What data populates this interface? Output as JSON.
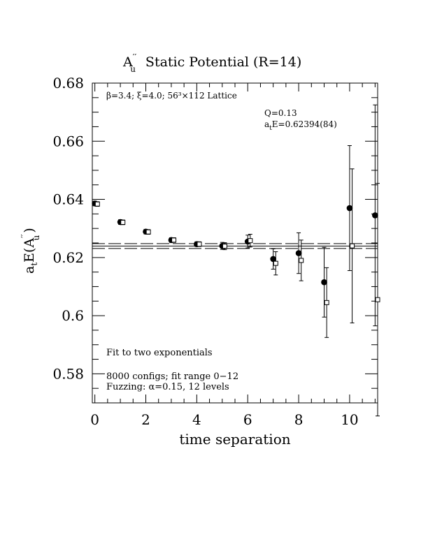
{
  "chart_data": {
    "type": "scatter",
    "title_main": "A",
    "title_super": "′′",
    "title_sub": "u",
    "title_rest": "Static Potential (R=14)",
    "xlabel": "time separation",
    "ylabel_main": "a",
    "ylabel_sub": "t",
    "ylabel_rest_open": "E(A",
    "ylabel_super": "′′",
    "ylabel_sub2": "u",
    "ylabel_close": ")",
    "xlim": [
      -0.1,
      11.1
    ],
    "ylim": [
      0.57,
      0.68
    ],
    "xticks": [
      0,
      2,
      4,
      6,
      8,
      10
    ],
    "xtick_labels": [
      "0",
      "2",
      "4",
      "6",
      "8",
      "10"
    ],
    "yticks": [
      0.58,
      0.6,
      0.62,
      0.64,
      0.66,
      0.68
    ],
    "ytick_labels": [
      "0.58",
      "0.6",
      "0.62",
      "0.64",
      "0.66",
      "0.68"
    ],
    "annotations": {
      "lattice": "β=3.4; ξ=4.0; 56³×112 Lattice",
      "q": "Q=0.13",
      "energy_prefix": "a",
      "energy_sub": "t",
      "energy_rest": "E=0.62394(84)",
      "fit": "Fit to two exponentials",
      "configs": "8000 configs; fit range 0−12",
      "fuzzing": "Fuzzing: α=0.15, 12 levels"
    },
    "fit": {
      "value": 0.62394,
      "error": 0.00084,
      "x_range": [
        0,
        12
      ]
    },
    "series": [
      {
        "marker": "filled-circle",
        "points": [
          {
            "x": 0,
            "y": 0.6386,
            "err": 0.0008
          },
          {
            "x": 1,
            "y": 0.6322,
            "err": 0.0008
          },
          {
            "x": 2,
            "y": 0.6289,
            "err": 0.0008
          },
          {
            "x": 3,
            "y": 0.626,
            "err": 0.0008
          },
          {
            "x": 4,
            "y": 0.6246,
            "err": 0.0008
          },
          {
            "x": 5,
            "y": 0.624,
            "err": 0.0012
          },
          {
            "x": 6,
            "y": 0.6255,
            "err": 0.0022
          },
          {
            "x": 7,
            "y": 0.6195,
            "err": 0.0035
          },
          {
            "x": 8,
            "y": 0.6215,
            "err": 0.007
          },
          {
            "x": 9,
            "y": 0.6115,
            "err": 0.012
          },
          {
            "x": 10,
            "y": 0.637,
            "err": 0.0215
          },
          {
            "x": 11,
            "y": 0.6345,
            "err": 0.038
          }
        ]
      },
      {
        "marker": "open-square",
        "points": [
          {
            "x": 0.1,
            "y": 0.6384,
            "err": 0.0008
          },
          {
            "x": 1.1,
            "y": 0.6321,
            "err": 0.0008
          },
          {
            "x": 2.1,
            "y": 0.6288,
            "err": 0.0008
          },
          {
            "x": 3.1,
            "y": 0.626,
            "err": 0.0008
          },
          {
            "x": 4.1,
            "y": 0.6246,
            "err": 0.0008
          },
          {
            "x": 5.1,
            "y": 0.6239,
            "err": 0.0012
          },
          {
            "x": 6.1,
            "y": 0.6258,
            "err": 0.0022
          },
          {
            "x": 7.1,
            "y": 0.618,
            "err": 0.004
          },
          {
            "x": 8.1,
            "y": 0.619,
            "err": 0.007
          },
          {
            "x": 9.1,
            "y": 0.6045,
            "err": 0.012
          },
          {
            "x": 10.1,
            "y": 0.624,
            "err": 0.0265
          },
          {
            "x": 11.1,
            "y": 0.6055,
            "err": 0.04
          }
        ]
      }
    ]
  }
}
